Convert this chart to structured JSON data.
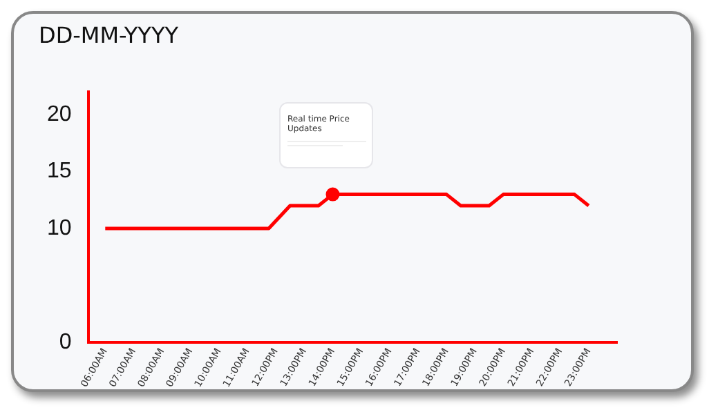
{
  "chart_data": {
    "type": "line",
    "title": "DD-MM-YYYY",
    "xlim": [
      5.4,
      24
    ],
    "xticks": [
      {
        "value": 6,
        "label": "06:00AM"
      },
      {
        "value": 7,
        "label": "07:00AM"
      },
      {
        "value": 8,
        "label": "08:00AM"
      },
      {
        "value": 9,
        "label": "09:00AM"
      },
      {
        "value": 10,
        "label": "10:00AM"
      },
      {
        "value": 11,
        "label": "11:00AM"
      },
      {
        "value": 12,
        "label": "12:00PM"
      },
      {
        "value": 13,
        "label": "13:00PM"
      },
      {
        "value": 14,
        "label": "14:00PM"
      },
      {
        "value": 15,
        "label": "15:00PM"
      },
      {
        "value": 16,
        "label": "16:00PM"
      },
      {
        "value": 17,
        "label": "17:00PM"
      },
      {
        "value": 18,
        "label": "18:00PM"
      },
      {
        "value": 19,
        "label": "19:00PM"
      },
      {
        "value": 20,
        "label": "20:00PM"
      },
      {
        "value": 21,
        "label": "21:00PM"
      },
      {
        "value": 22,
        "label": "22:00PM"
      },
      {
        "value": 23,
        "label": "23:00PM"
      }
    ],
    "ylim": [
      0,
      22
    ],
    "yticks": [
      0,
      10,
      15,
      20
    ],
    "grid": false,
    "legend": false,
    "marker": "none",
    "line_style": "solid",
    "series": [
      {
        "color": "#ff0000",
        "x": [
          6,
          11.75,
          12.5,
          13.5,
          14,
          18,
          18.5,
          19.5,
          20,
          22.5,
          23
        ],
        "values": [
          10,
          10,
          12,
          12,
          13,
          13,
          12,
          12,
          13,
          13,
          12
        ]
      },
      {
        "type": "scatter",
        "color": "#ff0000",
        "marker": "circle",
        "x": [
          14
        ],
        "values": [
          13
        ]
      }
    ],
    "annotations": [
      "Real time Price Updates"
    ]
  }
}
